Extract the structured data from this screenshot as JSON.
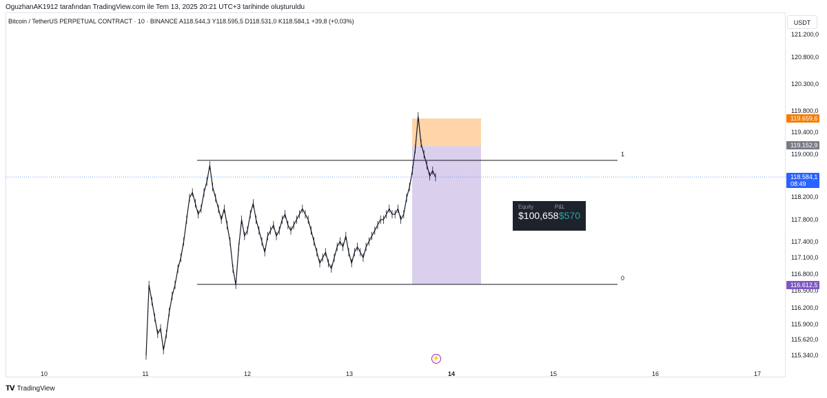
{
  "header": {
    "snapshot_text": "OguzhanAK1912 tarafından TradingView.com ile Tem 13, 2025 20:21 UTC+3 tarihinde oluşturuldu"
  },
  "symbol_bar": {
    "text": "Bitcoin / TetherUS PERPETUAL CONTRACT · 10 · BINANCE   A118.544,3  Y118.595,5  D118.531,0  K118.584,1  +39,8 (+0,03%)"
  },
  "currency": "USDT",
  "footer": {
    "brand": "TradingView",
    "logo": "tradingview-logo"
  },
  "equity_panel": {
    "equity_label": "Equity",
    "equity_value": "$100,658",
    "pnl_label": "P&L",
    "pnl_value": "$570"
  },
  "chart_data": {
    "type": "line",
    "price_axis": {
      "ticks": [
        "121.200,0",
        "120.800,0",
        "120.300,0",
        "119.800,0",
        "119.400,0",
        "119.000,0",
        "118.200,0",
        "117.800,0",
        "117.400,0",
        "117.100,0",
        "116.800,0",
        "116.500,0",
        "116.200,0",
        "115.900,0",
        "115.620,0",
        "115.340,0"
      ]
    },
    "time_axis": {
      "labels": [
        "10",
        "11",
        "12",
        "13",
        "14",
        "15",
        "16",
        "17"
      ],
      "bold": "14"
    },
    "price_labels": [
      {
        "text": "119.659,6",
        "color": "#f57c00"
      },
      {
        "text": "119.152,9",
        "color": "#787b86"
      },
      {
        "text": "118.584,1",
        "sub": "08:49",
        "color": "#2962ff"
      },
      {
        "text": "116.612,5",
        "color": "#7e57c2"
      }
    ],
    "fib_levels": [
      {
        "label": "1",
        "price": 118.89
      },
      {
        "label": "0",
        "price": 116.61
      }
    ],
    "position": {
      "entry": 119.15,
      "stop": 119.66,
      "target": 116.61,
      "stop_color": "#ffcc99",
      "target_color": "#d1c4e9"
    },
    "last_price": 118.584,
    "series": [
      {
        "values": [
          115.3,
          116.6,
          116.3,
          116.0,
          115.7,
          115.8,
          115.4,
          115.7,
          116.1,
          116.4,
          116.6,
          116.9,
          117.1,
          117.4,
          117.8,
          118.2,
          118.3,
          118.1,
          117.9,
          118.0,
          118.3,
          118.5,
          118.8,
          118.4,
          118.2,
          118.0,
          117.8,
          118.0,
          117.7,
          117.4,
          116.9,
          116.6,
          117.3,
          117.8,
          117.5,
          117.6,
          117.9,
          118.1,
          117.8,
          117.6,
          117.4,
          117.2,
          117.5,
          117.6,
          117.7,
          117.5,
          117.6,
          117.8,
          117.9,
          117.7,
          117.6,
          117.7,
          117.8,
          117.9,
          118.0,
          117.9,
          117.8,
          117.6,
          117.4,
          117.2,
          117.0,
          117.1,
          117.2,
          117.0,
          116.9,
          117.1,
          117.3,
          117.4,
          117.3,
          117.5,
          117.2,
          117.0,
          117.2,
          117.3,
          117.2,
          117.1,
          117.3,
          117.4,
          117.5,
          117.6,
          117.7,
          117.8,
          117.8,
          117.9,
          118.0,
          117.9,
          117.9,
          118.0,
          117.8,
          117.9,
          118.2,
          118.4,
          118.7,
          119.1,
          119.7,
          119.2,
          119.0,
          118.8,
          118.6,
          118.7,
          118.58
        ]
      }
    ]
  }
}
